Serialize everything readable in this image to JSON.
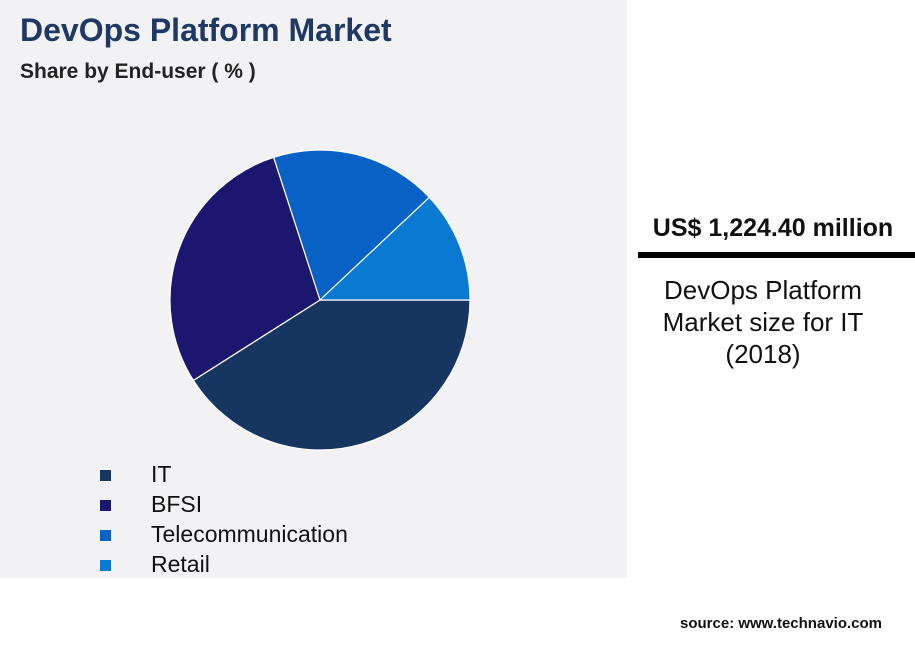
{
  "chart_data": {
    "type": "pie",
    "title": "DevOps Platform Market",
    "subtitle": "Share by End-user ( % )",
    "categories": [
      "IT",
      "BFSI",
      "Telecommunication",
      "Retail"
    ],
    "values": [
      41,
      29,
      18,
      12
    ],
    "colors": [
      "#163560",
      "#1b1670",
      "#0862c6",
      "#0a79d2"
    ]
  },
  "callout": {
    "value": "US$ 1,224.40 million",
    "lines": [
      "DevOps Platform",
      "Market size for IT",
      "(2018)"
    ]
  },
  "source": "source: www.technavio.com"
}
